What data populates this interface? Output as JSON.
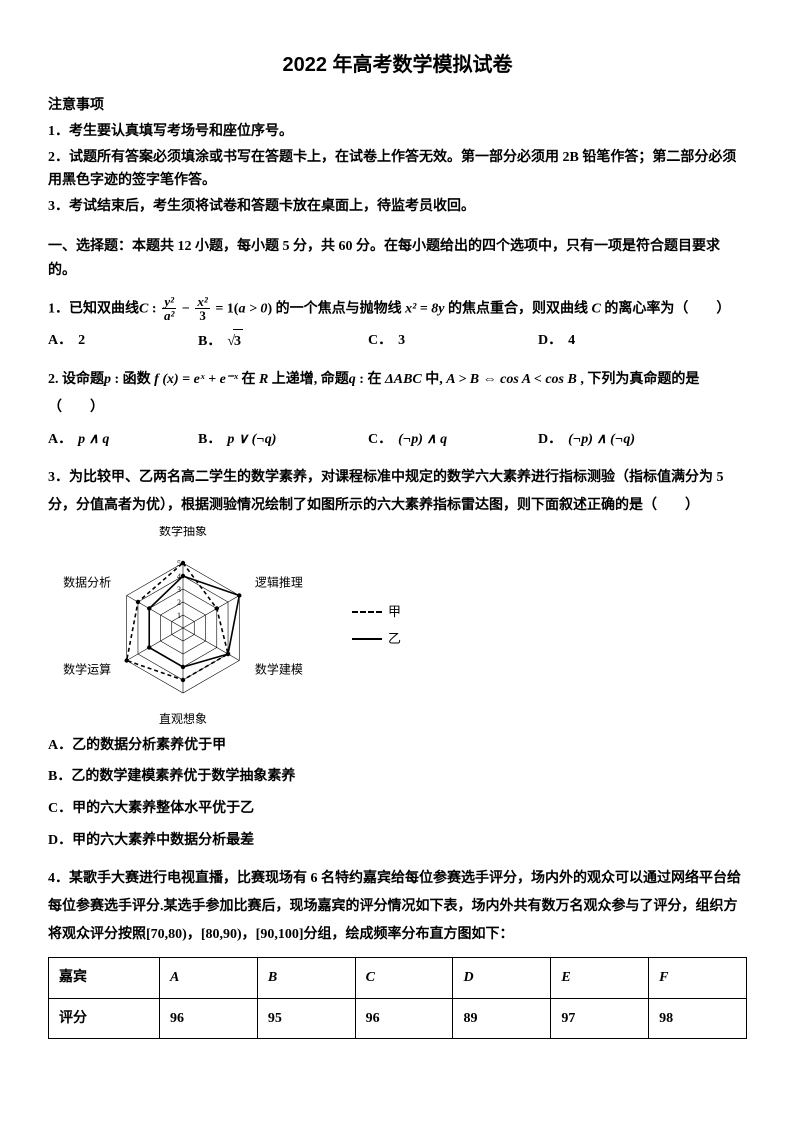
{
  "title": "2022 年高考数学模拟试卷",
  "notice": {
    "heading": "注意事项",
    "lines": [
      "1．考生要认真填写考场号和座位序号。",
      "2．试题所有答案必须填涂或书写在答题卡上，在试卷上作答无效。第一部分必须用 2B 铅笔作答；第二部分必须用黑色字迹的签字笔作答。",
      "3．考试结束后，考生须将试卷和答题卡放在桌面上，待监考员收回。"
    ]
  },
  "section1": "一、选择题：本题共 12 小题，每小题 5 分，共 60 分。在每小题给出的四个选项中，只有一项是符合题目要求的。",
  "q1": {
    "prefix": "1．已知双曲线",
    "C": "C",
    "colon": " : ",
    "frac1_num": "y²",
    "frac1_den": "a²",
    "minus": " − ",
    "frac2_num": "x²",
    "frac2_den": "3",
    "eq": " = 1(",
    "cond": "a > 0",
    "after_cond": ") 的一个焦点与抛物线 ",
    "parab": "x² = 8y",
    "after_parab": " 的焦点重合，则双曲线 ",
    "C2": "C",
    "tail": " 的离心率为（　　）",
    "optA_label": "A．",
    "optA": "2",
    "optB_label": "B．",
    "optB_pre": "√",
    "optB_rad": "3",
    "optC_label": "C．",
    "optC": "3",
    "optD_label": "D．",
    "optD": "4"
  },
  "q2": {
    "text_a": "2. 设命题",
    "p": "p",
    "text_b": " : 函数 ",
    "fx": "f (x) = eˣ + e⁻ˣ",
    "text_c": " 在 ",
    "R": "R",
    "text_d": " 上递增, 命题",
    "q": "q",
    "text_e": " : 在 ",
    "tri": "ΔABC",
    "text_f": " 中, ",
    "AgtB": "A > B",
    "iff": " ⇔ ",
    "cos": "cos A < cos B",
    "tail": " , 下列为真命题的是（　　）",
    "optA_label": "A．",
    "optA": "p ∧ q",
    "optB_label": "B．",
    "optB": "p ∨ (¬q)",
    "optC_label": "C．",
    "optC": "(¬p) ∧ q",
    "optD_label": "D．",
    "optD": "(¬p) ∧ (¬q)"
  },
  "q3": {
    "text": "3．为比较甲、乙两名高二学生的数学素养，对课程标准中规定的数学六大素养进行指标测验（指标值满分为 5 分，分值高者为优），根据测验情况绘制了如图所示的六大素养指标雷达图，则下面叙述正确的是（　　）",
    "axes": [
      "数学抽象",
      "逻辑推理",
      "数学建模",
      "直观想象",
      "数学运算",
      "数据分析"
    ],
    "rings": 5,
    "series": [
      {
        "name": "甲",
        "style": "dashed",
        "values": [
          5,
          3,
          4,
          4,
          5,
          4
        ]
      },
      {
        "name": "乙",
        "style": "solid",
        "values": [
          4,
          5,
          4,
          3,
          3,
          3
        ]
      }
    ],
    "colors": {
      "line": "#000000",
      "grid": "#000000",
      "bg": "#ffffff"
    },
    "legend": {
      "jia": "甲",
      "yi": "乙"
    },
    "optA": "A．乙的数据分析素养优于甲",
    "optB": "B．乙的数学建模素养优于数学抽象素养",
    "optC": "C．甲的六大素养整体水平优于乙",
    "optD": "D．甲的六大素养中数据分析最差"
  },
  "q4": {
    "text_a": "4．某歌手大赛进行电视直播，比赛现场有 6 名特约嘉宾给每位参赛选手评分，场内外的观众可以通过网络平台给每位参赛选手评分.某选手参加比赛后，现场嘉宾的评分情况如下表，场内外共有数万名观众参与了评分，组织方将观众评分按照",
    "i1": "[70,80)",
    "c1": "，",
    "i2": "[80,90)",
    "c2": "，",
    "i3": "[90,100]",
    "text_b": "分组，绘成频率分布直方图如下：",
    "table": {
      "row1_h": "嘉宾",
      "cols": [
        "A",
        "B",
        "C",
        "D",
        "E",
        "F"
      ],
      "row2_h": "评分",
      "vals": [
        "96",
        "95",
        "96",
        "89",
        "97",
        "98"
      ]
    }
  }
}
